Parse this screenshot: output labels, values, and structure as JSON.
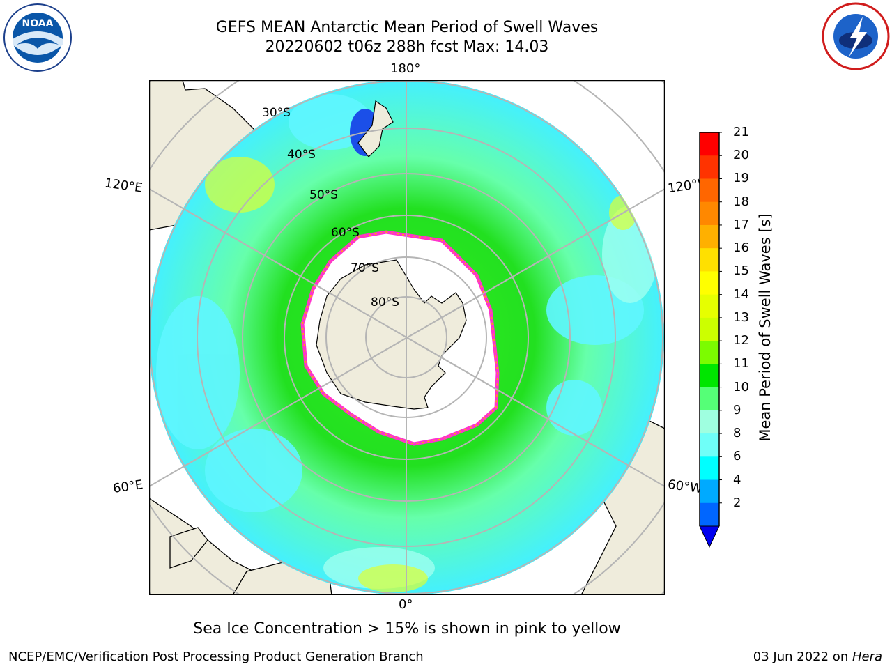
{
  "title": {
    "line1": "GEFS MEAN Antarctic Mean Period of Swell Waves",
    "line2": "20220602 t06z 288h fcst   Max: 14.03"
  },
  "meridian_labels": {
    "top": "180°",
    "bottom": "0°",
    "upper_left": "120°E",
    "lower_left": "60°E",
    "upper_right": "120°W",
    "lower_right": "60°W"
  },
  "latitude_labels": [
    "30°S",
    "40°S",
    "50°S",
    "60°S",
    "70°S",
    "80°S"
  ],
  "colorbar": {
    "label": "Mean Period of Swell Waves [s]",
    "ticks": [
      "21",
      "20",
      "19",
      "18",
      "17",
      "16",
      "15",
      "14",
      "13",
      "12",
      "11",
      "10",
      "9",
      "8",
      "6",
      "4",
      "2"
    ],
    "colors_top_to_bottom": [
      "#ff0000",
      "#ff3300",
      "#ff6600",
      "#ff8800",
      "#ffb000",
      "#ffe000",
      "#ffff00",
      "#e6ff00",
      "#ccff00",
      "#7cfc00",
      "#00e600",
      "#55ff77",
      "#9fffe0",
      "#6ffff8",
      "#00ffff",
      "#00aaff",
      "#0066ff"
    ],
    "extend_color": "#0000ee"
  },
  "caption": "Sea Ice Concentration > 15% is shown in pink to yellow",
  "footer": {
    "left": "NCEP/EMC/Verification Post Processing Product Generation Branch",
    "right_date": "03 Jun 2022 on ",
    "right_host": "Hera"
  },
  "logos": {
    "left": "NOAA",
    "right": "NATIONAL WEATHER SERVICE"
  },
  "colors": {
    "land": "#efecdc",
    "ice": "#ffffff",
    "ice_edge": "#ff33cc",
    "grid": "#b5b5b5"
  }
}
